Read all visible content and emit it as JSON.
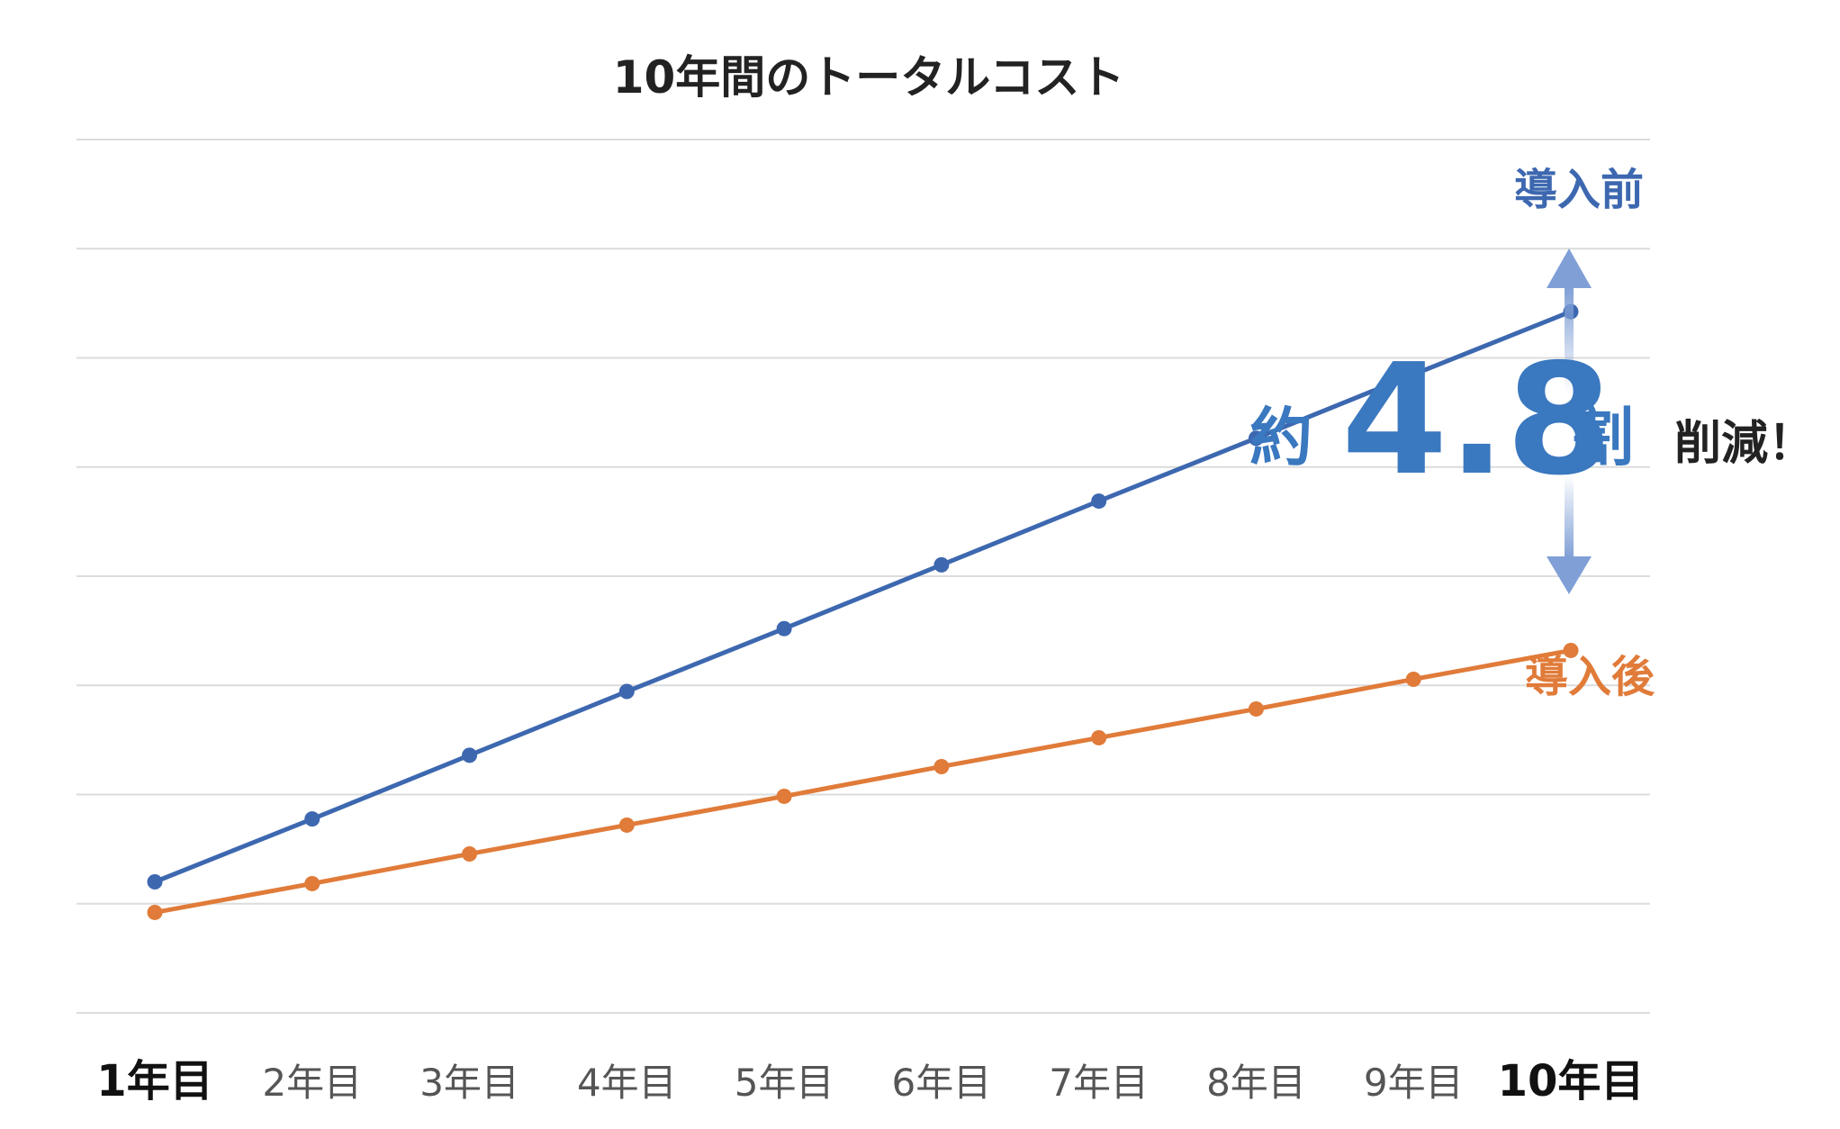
{
  "chart_data": {
    "type": "line",
    "title": "10年間のトータルコスト",
    "categories": [
      "1年目",
      "2年目",
      "3年目",
      "4年目",
      "5年目",
      "6年目",
      "7年目",
      "8年目",
      "9年目",
      "10年目"
    ],
    "emphasized_categories": [
      "1年目",
      "10年目"
    ],
    "ylim": [
      0,
      10
    ],
    "grid": true,
    "series": [
      {
        "name": "導入前",
        "color": "#3d68b0",
        "values": [
          1.5,
          2.22,
          2.95,
          3.68,
          4.4,
          5.13,
          5.86,
          6.58,
          7.31,
          8.03
        ]
      },
      {
        "name": "導入後",
        "color": "#e07b39",
        "values": [
          1.15,
          1.48,
          1.82,
          2.15,
          2.48,
          2.82,
          3.15,
          3.48,
          3.82,
          4.15
        ]
      }
    ],
    "annotation": {
      "prefix": "約",
      "value": "4.8",
      "suffix": "割",
      "tail": "削減！",
      "color": "#3a78bf",
      "arrow_color": "#7f9fd6"
    }
  }
}
